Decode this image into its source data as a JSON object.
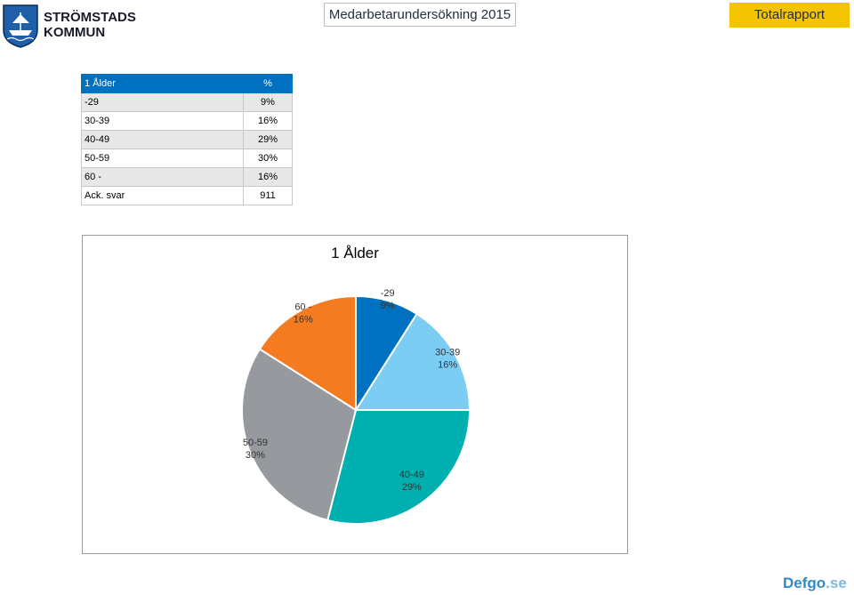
{
  "header": {
    "logo_line1": "STRÖMSTADS",
    "logo_line2": "KOMMUN",
    "survey_title": "Medarbetarundersökning 2015",
    "report_button": "Totalrapport"
  },
  "table": {
    "title": "1 Ålder",
    "value_header": "%",
    "rows": [
      {
        "label": "-29",
        "value": "9%"
      },
      {
        "label": "30-39",
        "value": "16%"
      },
      {
        "label": "40-49",
        "value": "29%"
      },
      {
        "label": "50-59",
        "value": "30%"
      },
      {
        "label": "60 -",
        "value": "16%"
      }
    ],
    "total_label": "Ack. svar",
    "total_value": "911"
  },
  "chart_data": {
    "type": "pie",
    "title": "1 Ålder",
    "slices": [
      {
        "label": "-29",
        "value": 9,
        "display": "9%",
        "color": "#0070c0"
      },
      {
        "label": "30-39",
        "value": 16,
        "display": "16%",
        "color": "#7ccdf4"
      },
      {
        "label": "40-49",
        "value": 29,
        "display": "29%",
        "color": "#00b0b0"
      },
      {
        "label": "50-59",
        "value": 30,
        "display": "30%",
        "color": "#969a9e"
      },
      {
        "label": "60 -",
        "value": 16,
        "display": "16%",
        "color": "#f47b20"
      }
    ]
  },
  "footer": {
    "brand_main": "Defgo",
    "brand_tld": ".se"
  }
}
